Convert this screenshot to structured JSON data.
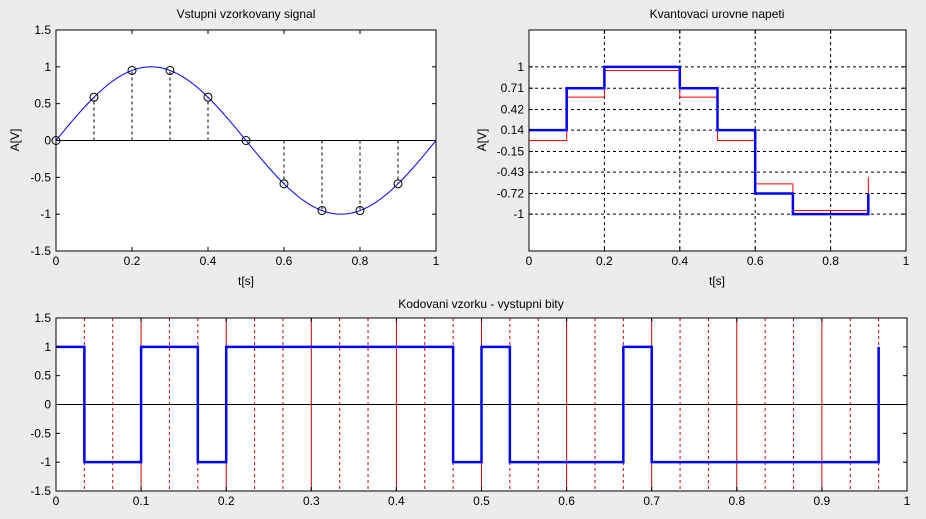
{
  "figure": {
    "background": "#ececec"
  },
  "chart_data": [
    {
      "type": "line",
      "title": "Vstupni vzorkovany signal",
      "xlabel": "t[s]",
      "ylabel": "A[V]",
      "xlim": [
        0,
        1
      ],
      "ylim": [
        -1.5,
        1.5
      ],
      "xticks": [
        "0",
        "0.2",
        "0.4",
        "0.6",
        "0.8",
        "1"
      ],
      "yticks": [
        "-1.5",
        "-1",
        "-0.5",
        "0",
        "0.5",
        "1",
        "1.5"
      ],
      "grid": false,
      "colors": {
        "signal": "#0000ff",
        "samples": "#000000"
      },
      "series": [
        {
          "kind": "sine",
          "amplitude": 1,
          "frequency": 1
        },
        {
          "kind": "stem",
          "x": [
            0,
            0.1,
            0.2,
            0.3,
            0.4,
            0.5,
            0.6,
            0.7,
            0.8,
            0.9
          ],
          "y": [
            0,
            0.588,
            0.951,
            0.951,
            0.588,
            0,
            -0.588,
            -0.951,
            -0.951,
            -0.588
          ]
        }
      ]
    },
    {
      "type": "line",
      "title": "Kvantovaci urovne napeti",
      "xlabel": "t[s]",
      "ylabel": "A[V]",
      "xlim": [
        0,
        1
      ],
      "ylim": [
        -1.5,
        1.5
      ],
      "xticks": [
        "0",
        "0.2",
        "0.4",
        "0.6",
        "0.8",
        "1"
      ],
      "yticks": [
        "1",
        "0.71",
        "0.42",
        "0.14",
        "-0.15",
        "-0.43",
        "-0.72",
        "-1"
      ],
      "grid": true,
      "colors": {
        "quantized": "#0000ff",
        "sampled": "#ff0000"
      },
      "series": [
        {
          "kind": "stairs",
          "x": [
            0,
            0.1,
            0.2,
            0.3,
            0.4,
            0.5,
            0.6,
            0.7,
            0.8,
            0.9
          ],
          "y": [
            0.14,
            0.71,
            1,
            1,
            0.71,
            0.14,
            -0.72,
            -1,
            -1,
            -0.72
          ]
        },
        {
          "kind": "stairs",
          "x": [
            0,
            0.1,
            0.2,
            0.3,
            0.4,
            0.5,
            0.6,
            0.7,
            0.8,
            0.9
          ],
          "y": [
            0,
            0.588,
            0.951,
            0.951,
            0.588,
            0,
            -0.588,
            -0.951,
            -0.951,
            -0.588
          ]
        }
      ]
    },
    {
      "type": "line",
      "title": "Kodovani vzorku - vystupni bity",
      "xlabel": "",
      "ylabel": "",
      "xlim": [
        0,
        1
      ],
      "ylim": [
        -1.5,
        1.5
      ],
      "xticks": [
        "0",
        "0.1",
        "0.2",
        "0.3",
        "0.4",
        "0.5",
        "0.6",
        "0.7",
        "0.8",
        "0.9",
        "1"
      ],
      "yticks": [
        "-1.5",
        "-1",
        "-0.5",
        "0",
        "0.5",
        "1",
        "1.5"
      ],
      "grid": "x",
      "colors": {
        "bits": "#0000ff",
        "bit_boundaries": "#cc0000"
      },
      "bit_period": 0.0333,
      "bits": [
        1,
        0,
        0,
        1,
        1,
        0,
        1,
        1,
        1,
        1,
        1,
        1,
        1,
        1,
        0,
        1,
        0,
        0,
        0,
        0,
        1,
        0,
        0,
        0,
        0,
        0,
        0,
        0,
        0,
        1
      ],
      "word_boundaries": [
        0.1,
        0.2,
        0.3,
        0.4,
        0.5,
        0.6,
        0.7,
        0.8,
        0.9
      ]
    }
  ]
}
